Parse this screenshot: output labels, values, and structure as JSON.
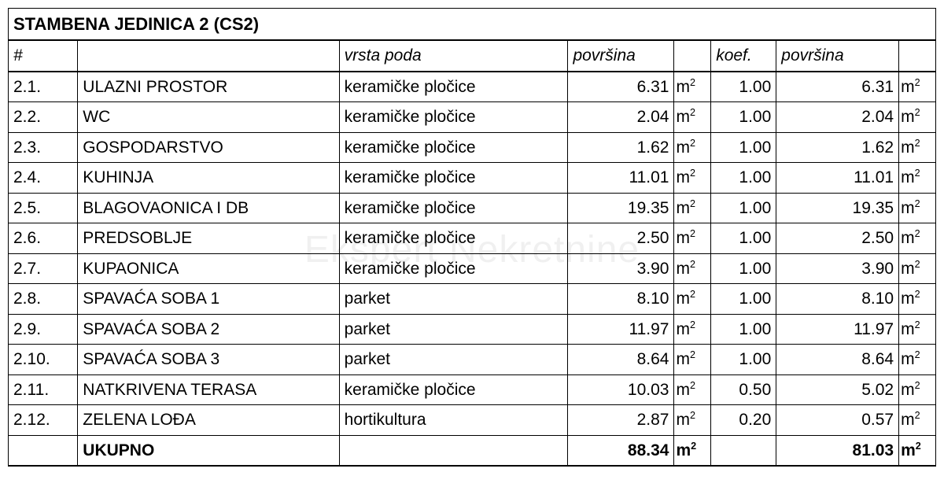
{
  "title": "STAMBENA JEDINICA 2 (CS2)",
  "headers": {
    "num": "#",
    "name": "",
    "floor": "vrsta poda",
    "area1": "površina",
    "unit1": "",
    "koef": "koef.",
    "area2": "površina",
    "unit2": ""
  },
  "unit_html": "m<sup>2</sup>",
  "rows": [
    {
      "num": "2.1.",
      "name": "ULAZNI PROSTOR",
      "floor": "keramičke pločice",
      "area1": "6.31",
      "koef": "1.00",
      "area2": "6.31"
    },
    {
      "num": "2.2.",
      "name": "WC",
      "floor": "keramičke pločice",
      "area1": "2.04",
      "koef": "1.00",
      "area2": "2.04"
    },
    {
      "num": "2.3.",
      "name": "GOSPODARSTVO",
      "floor": "keramičke pločice",
      "area1": "1.62",
      "koef": "1.00",
      "area2": "1.62"
    },
    {
      "num": "2.4.",
      "name": "KUHINJA",
      "floor": "keramičke pločice",
      "area1": "11.01",
      "koef": "1.00",
      "area2": "11.01"
    },
    {
      "num": "2.5.",
      "name": "BLAGOVAONICA I DB",
      "floor": "keramičke pločice",
      "area1": "19.35",
      "koef": "1.00",
      "area2": "19.35"
    },
    {
      "num": "2.6.",
      "name": "PREDSOBLJE",
      "floor": "keramičke pločice",
      "area1": "2.50",
      "koef": "1.00",
      "area2": "2.50"
    },
    {
      "num": "2.7.",
      "name": "KUPAONICA",
      "floor": "keramičke pločice",
      "area1": "3.90",
      "koef": "1.00",
      "area2": "3.90"
    },
    {
      "num": "2.8.",
      "name": "SPAVAĆA SOBA 1",
      "floor": "parket",
      "area1": "8.10",
      "koef": "1.00",
      "area2": "8.10"
    },
    {
      "num": "2.9.",
      "name": "SPAVAĆA SOBA 2",
      "floor": "parket",
      "area1": "11.97",
      "koef": "1.00",
      "area2": "11.97"
    },
    {
      "num": "2.10.",
      "name": "SPAVAĆA SOBA 3",
      "floor": "parket",
      "area1": "8.64",
      "koef": "1.00",
      "area2": "8.64"
    },
    {
      "num": "2.11.",
      "name": "NATKRIVENA TERASA",
      "floor": "keramičke pločice",
      "area1": "10.03",
      "koef": "0.50",
      "area2": "5.02"
    },
    {
      "num": "2.12.",
      "name": "ZELENA LOĐA",
      "floor": "hortikultura",
      "area1": "2.87",
      "koef": "0.20",
      "area2": "0.57"
    }
  ],
  "total": {
    "label": "UKUPNO",
    "area1": "88.34",
    "area2": "81.03"
  },
  "watermark": "Ekspert Nekretnine"
}
